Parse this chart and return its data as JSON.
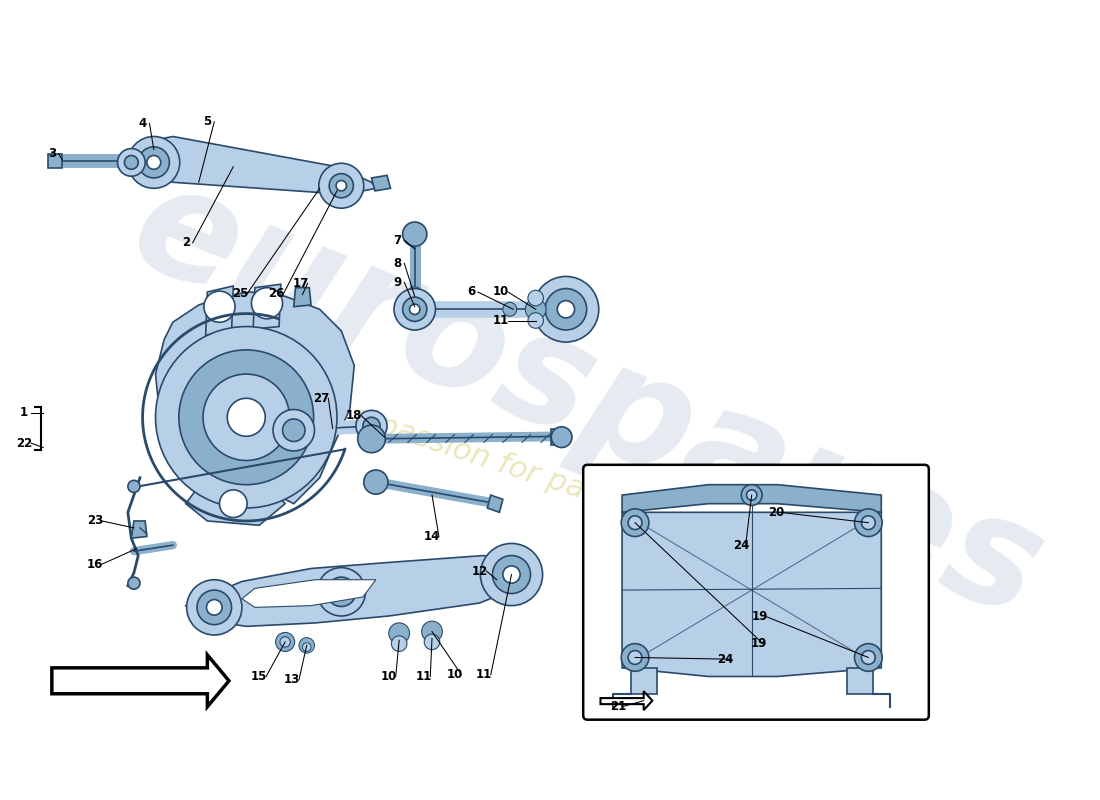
{
  "bg_color": "#ffffff",
  "lc": "#b8cfe8",
  "mc": "#8ab0cc",
  "dc": "#5a85a8",
  "oc": "#2a4a6b",
  "wm_color": "#c8d4e0",
  "wm_text": "#ddd890",
  "figsize": [
    11.0,
    8.0
  ],
  "dpi": 100
}
